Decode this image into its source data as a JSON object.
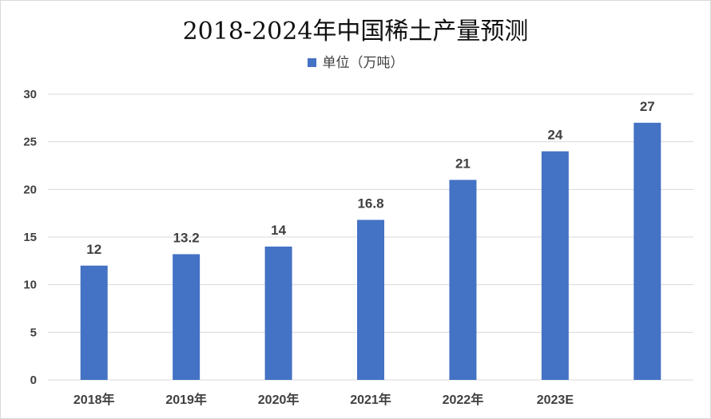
{
  "chart_data": {
    "type": "bar",
    "title": "2018-2024年中国稀土产量预测",
    "legend": "单位（万吨）",
    "legend_position": "top",
    "categories": [
      "2018年",
      "2019年",
      "2020年",
      "2021年",
      "2022年",
      "2023E",
      ""
    ],
    "series": [
      {
        "name": "单位（万吨）",
        "values": [
          12,
          13.2,
          14,
          16.8,
          21,
          24,
          27
        ]
      }
    ],
    "data_labels": [
      "12",
      "13.2",
      "14",
      "16.8",
      "21",
      "24",
      "27"
    ],
    "yticks": [
      "0",
      "5",
      "10",
      "15",
      "20",
      "25",
      "30"
    ],
    "ylim": [
      0,
      30
    ],
    "grid": true,
    "bar_color": "#4472c4",
    "grid_color": "#d9d9d9"
  }
}
